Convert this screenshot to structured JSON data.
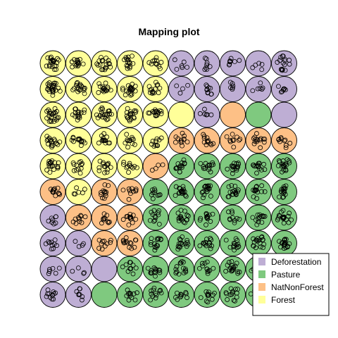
{
  "chart_data": {
    "type": "scatter",
    "title": "Mapping plot",
    "grid": {
      "rows": 10,
      "cols": 10
    },
    "classes": [
      {
        "name": "Deforestation",
        "color": "#beaed4"
      },
      {
        "name": "Pasture",
        "color": "#7fc97f"
      },
      {
        "name": "NatNonForest",
        "color": "#fdc086"
      },
      {
        "name": "Forest",
        "color": "#ffff99"
      }
    ],
    "cells": [
      [
        "Forest",
        "Forest",
        "Forest",
        "Forest",
        "Forest",
        "Deforestation",
        "Deforestation",
        "Deforestation",
        "Deforestation",
        "Deforestation"
      ],
      [
        "Forest",
        "Forest",
        "Forest",
        "Forest",
        "Forest",
        "Deforestation",
        "Deforestation",
        "Deforestation",
        "Deforestation",
        "Deforestation"
      ],
      [
        "Forest",
        "Forest",
        "Forest",
        "Forest",
        "Forest",
        "Forest",
        "Deforestation",
        "NatNonForest",
        "Pasture",
        "Deforestation"
      ],
      [
        "Forest",
        "Forest",
        "Forest",
        "Forest",
        "Forest",
        "NatNonForest",
        "NatNonForest",
        "NatNonForest",
        "NatNonForest",
        "NatNonForest"
      ],
      [
        "Forest",
        "Forest",
        "Forest",
        "Forest",
        "NatNonForest",
        "Pasture",
        "Pasture",
        "Pasture",
        "Pasture",
        "Pasture"
      ],
      [
        "NatNonForest",
        "Forest",
        "NatNonForest",
        "NatNonForest",
        "Pasture",
        "Pasture",
        "Pasture",
        "Pasture",
        "Pasture",
        "Pasture"
      ],
      [
        "Deforestation",
        "NatNonForest",
        "NatNonForest",
        "NatNonForest",
        "Pasture",
        "Pasture",
        "Pasture",
        "Pasture",
        "Pasture",
        "Pasture"
      ],
      [
        "Deforestation",
        "Deforestation",
        "NatNonForest",
        "NatNonForest",
        "Pasture",
        "Pasture",
        "Pasture",
        "Pasture",
        "Pasture",
        "Pasture"
      ],
      [
        "Deforestation",
        "Deforestation",
        "Deforestation",
        "Pasture",
        "Pasture",
        "Pasture",
        "Pasture",
        "Pasture",
        "Pasture",
        "Pasture"
      ],
      [
        "Deforestation",
        "Deforestation",
        "Pasture",
        "Pasture",
        "Pasture",
        "Pasture",
        "Pasture",
        "Pasture",
        "Pasture",
        "Pasture"
      ]
    ],
    "point_counts": [
      [
        22,
        16,
        18,
        16,
        12,
        6,
        8,
        8,
        5,
        16
      ],
      [
        24,
        18,
        16,
        20,
        14,
        4,
        10,
        6,
        6,
        8
      ],
      [
        22,
        16,
        22,
        18,
        16,
        0,
        6,
        0,
        0,
        0
      ],
      [
        18,
        14,
        14,
        12,
        10,
        12,
        12,
        10,
        14,
        10
      ],
      [
        18,
        12,
        14,
        12,
        4,
        14,
        14,
        16,
        14,
        18
      ],
      [
        14,
        6,
        12,
        10,
        10,
        18,
        18,
        16,
        14,
        16
      ],
      [
        8,
        10,
        10,
        14,
        12,
        16,
        14,
        10,
        14,
        20
      ],
      [
        10,
        4,
        10,
        14,
        14,
        16,
        14,
        14,
        18,
        20
      ],
      [
        6,
        4,
        0,
        10,
        14,
        14,
        12,
        18,
        10,
        12
      ],
      [
        12,
        8,
        0,
        12,
        12,
        10,
        12,
        14,
        8,
        6
      ]
    ],
    "legend_position": "bottom-right"
  }
}
